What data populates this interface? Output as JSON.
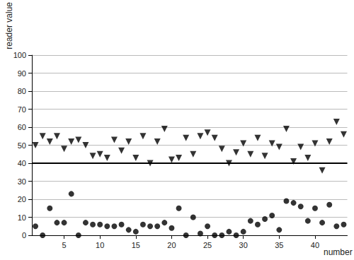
{
  "chart_data": {
    "type": "scatter",
    "x_label": "number",
    "y_label": "reader value",
    "xlim": [
      0.5,
      44.5
    ],
    "xticks": [
      5,
      10,
      15,
      20,
      25,
      30,
      35,
      40
    ],
    "ylim": [
      0,
      100
    ],
    "yticks": [
      0,
      10,
      20,
      30,
      40,
      50,
      60,
      70,
      80,
      90,
      100
    ],
    "grid": true,
    "threshold": 40,
    "x": [
      1,
      2,
      3,
      4,
      5,
      6,
      7,
      8,
      9,
      10,
      11,
      12,
      13,
      14,
      15,
      16,
      17,
      18,
      19,
      20,
      21,
      22,
      23,
      24,
      25,
      26,
      27,
      28,
      29,
      30,
      31,
      32,
      33,
      34,
      35,
      36,
      37,
      38,
      39,
      40,
      41,
      42,
      43,
      44
    ],
    "series": [
      {
        "color": "#000000",
        "marker": "triangle_down",
        "values": [
          50,
          55,
          52,
          55,
          48,
          52,
          53,
          50,
          44,
          45,
          43,
          53,
          47,
          52,
          43,
          55,
          40,
          52,
          59,
          42,
          43,
          54,
          45,
          55,
          57,
          54,
          48,
          40,
          46,
          51,
          45,
          54,
          44,
          51,
          49,
          59,
          41,
          49,
          43,
          51,
          36,
          52,
          63,
          56
        ]
      },
      {
        "color": "#000000",
        "marker": "circle",
        "values": [
          5,
          0,
          15,
          7,
          7,
          23,
          0,
          7,
          6,
          6,
          5,
          5,
          6,
          3,
          2,
          6,
          5,
          5,
          7,
          4,
          15,
          0,
          10,
          1,
          5,
          0,
          0,
          2,
          0,
          2,
          8,
          6,
          9,
          11,
          3,
          19,
          18,
          16,
          8,
          15,
          7,
          17,
          5,
          6
        ]
      }
    ]
  }
}
